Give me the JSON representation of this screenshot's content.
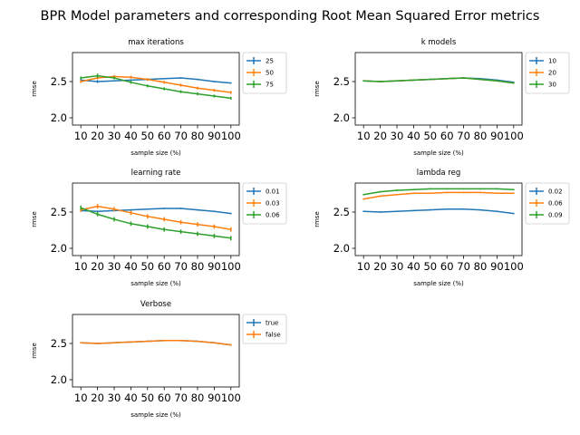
{
  "suptitle": "BPR Model parameters and corresponding Root Mean Squared Error metrics",
  "colors": {
    "c0": "#1f77b4",
    "c1": "#ff7f0e",
    "c2": "#2ca02c"
  },
  "chart_data": [
    {
      "type": "line",
      "title": "max iterations",
      "xlabel": "sample size (%)",
      "ylabel": "rmse",
      "x": [
        10,
        20,
        30,
        40,
        50,
        60,
        70,
        80,
        90,
        100
      ],
      "xlim": [
        5,
        105
      ],
      "ylim": [
        1.9,
        2.9
      ],
      "yticks": [
        2.0,
        2.5
      ],
      "ytick_labels": [
        "2.0",
        "2.5"
      ],
      "legend": "outside-right",
      "series": [
        {
          "name": "25",
          "values": [
            2.52,
            2.5,
            2.51,
            2.52,
            2.53,
            2.54,
            2.55,
            2.53,
            2.5,
            2.48
          ],
          "err": [
            0.02,
            0.02,
            0.01,
            0.01,
            0.01,
            0.01,
            0.01,
            0.01,
            0.01,
            0.01
          ]
        },
        {
          "name": "50",
          "values": [
            2.5,
            2.55,
            2.57,
            2.56,
            2.53,
            2.49,
            2.45,
            2.41,
            2.38,
            2.35
          ],
          "err": [
            0.02,
            0.02,
            0.02,
            0.02,
            0.02,
            0.02,
            0.02,
            0.02,
            0.02,
            0.02
          ]
        },
        {
          "name": "75",
          "values": [
            2.55,
            2.58,
            2.55,
            2.49,
            2.44,
            2.4,
            2.36,
            2.33,
            2.3,
            2.27
          ],
          "err": [
            0.02,
            0.03,
            0.02,
            0.02,
            0.02,
            0.02,
            0.02,
            0.02,
            0.02,
            0.02
          ]
        }
      ]
    },
    {
      "type": "line",
      "title": "k models",
      "xlabel": "sample size (%)",
      "ylabel": "rmse",
      "x": [
        10,
        20,
        30,
        40,
        50,
        60,
        70,
        80,
        90,
        100
      ],
      "xlim": [
        5,
        105
      ],
      "ylim": [
        1.9,
        2.9
      ],
      "yticks": [
        2.0,
        2.5
      ],
      "ytick_labels": [
        "2.0",
        "2.5"
      ],
      "legend": "outside-right",
      "series": [
        {
          "name": "10",
          "values": [
            2.51,
            2.5,
            2.51,
            2.52,
            2.53,
            2.54,
            2.55,
            2.54,
            2.52,
            2.49
          ],
          "err": [
            0.01,
            0.01,
            0.01,
            0.01,
            0.01,
            0.01,
            0.01,
            0.01,
            0.01,
            0.01
          ]
        },
        {
          "name": "20",
          "values": [
            2.51,
            2.5,
            2.51,
            2.52,
            2.53,
            2.54,
            2.55,
            2.53,
            2.51,
            2.48
          ],
          "err": [
            0.01,
            0.01,
            0.01,
            0.01,
            0.01,
            0.01,
            0.01,
            0.01,
            0.01,
            0.01
          ]
        },
        {
          "name": "30",
          "values": [
            2.51,
            2.5,
            2.51,
            2.52,
            2.53,
            2.54,
            2.55,
            2.53,
            2.51,
            2.48
          ],
          "err": [
            0.01,
            0.01,
            0.01,
            0.01,
            0.01,
            0.01,
            0.01,
            0.01,
            0.01,
            0.01
          ]
        }
      ]
    },
    {
      "type": "line",
      "title": "learning rate",
      "xlabel": "sample size (%)",
      "ylabel": "rmse",
      "x": [
        10,
        20,
        30,
        40,
        50,
        60,
        70,
        80,
        90,
        100
      ],
      "xlim": [
        5,
        105
      ],
      "ylim": [
        1.9,
        2.9
      ],
      "yticks": [
        2.0,
        2.5
      ],
      "ytick_labels": [
        "2.0",
        "2.5"
      ],
      "legend": "outside-right",
      "series": [
        {
          "name": "0.01",
          "values": [
            2.52,
            2.51,
            2.52,
            2.53,
            2.54,
            2.55,
            2.55,
            2.53,
            2.51,
            2.48
          ],
          "err": [
            0.01,
            0.01,
            0.01,
            0.01,
            0.01,
            0.01,
            0.01,
            0.01,
            0.01,
            0.01
          ]
        },
        {
          "name": "0.03",
          "values": [
            2.53,
            2.58,
            2.54,
            2.49,
            2.44,
            2.4,
            2.36,
            2.33,
            2.3,
            2.26
          ],
          "err": [
            0.03,
            0.03,
            0.03,
            0.03,
            0.03,
            0.03,
            0.03,
            0.03,
            0.03,
            0.03
          ]
        },
        {
          "name": "0.06",
          "values": [
            2.56,
            2.47,
            2.4,
            2.34,
            2.3,
            2.26,
            2.23,
            2.2,
            2.17,
            2.14
          ],
          "err": [
            0.03,
            0.03,
            0.03,
            0.03,
            0.03,
            0.03,
            0.03,
            0.03,
            0.03,
            0.03
          ]
        }
      ]
    },
    {
      "type": "line",
      "title": "lambda reg",
      "xlabel": "sample size (%)",
      "ylabel": "rmse",
      "x": [
        10,
        20,
        30,
        40,
        50,
        60,
        70,
        80,
        90,
        100
      ],
      "xlim": [
        5,
        105
      ],
      "ylim": [
        1.9,
        2.9
      ],
      "yticks": [
        2.0,
        2.5
      ],
      "ytick_labels": [
        "2.0",
        "2.5"
      ],
      "legend": "outside-right",
      "series": [
        {
          "name": "0.02",
          "values": [
            2.51,
            2.5,
            2.51,
            2.52,
            2.53,
            2.54,
            2.54,
            2.53,
            2.51,
            2.48
          ],
          "err": [
            0.01,
            0.01,
            0.01,
            0.01,
            0.01,
            0.01,
            0.01,
            0.01,
            0.01,
            0.01
          ]
        },
        {
          "name": "0.06",
          "values": [
            2.68,
            2.72,
            2.74,
            2.76,
            2.76,
            2.77,
            2.77,
            2.77,
            2.76,
            2.76
          ],
          "err": [
            0.01,
            0.01,
            0.01,
            0.01,
            0.01,
            0.01,
            0.01,
            0.01,
            0.01,
            0.01
          ]
        },
        {
          "name": "0.09",
          "values": [
            2.74,
            2.78,
            2.8,
            2.81,
            2.82,
            2.82,
            2.82,
            2.82,
            2.82,
            2.81
          ],
          "err": [
            0.01,
            0.01,
            0.01,
            0.01,
            0.01,
            0.01,
            0.01,
            0.01,
            0.01,
            0.01
          ]
        }
      ]
    },
    {
      "type": "line",
      "title": "Verbose",
      "xlabel": "sample size (%)",
      "ylabel": "rmse",
      "x": [
        10,
        20,
        30,
        40,
        50,
        60,
        70,
        80,
        90,
        100
      ],
      "xlim": [
        5,
        105
      ],
      "ylim": [
        1.9,
        2.9
      ],
      "yticks": [
        2.0,
        2.5
      ],
      "ytick_labels": [
        "2.0",
        "2.5"
      ],
      "legend": "outside-right",
      "series": [
        {
          "name": "true",
          "values": [
            2.51,
            2.5,
            2.51,
            2.52,
            2.53,
            2.54,
            2.54,
            2.53,
            2.51,
            2.48
          ],
          "err": [
            0.01,
            0.01,
            0.01,
            0.01,
            0.01,
            0.01,
            0.01,
            0.01,
            0.01,
            0.01
          ]
        },
        {
          "name": "false",
          "values": [
            2.51,
            2.5,
            2.51,
            2.52,
            2.53,
            2.54,
            2.54,
            2.53,
            2.51,
            2.48
          ],
          "err": [
            0.01,
            0.01,
            0.01,
            0.01,
            0.01,
            0.01,
            0.01,
            0.01,
            0.01,
            0.01
          ]
        }
      ]
    }
  ]
}
